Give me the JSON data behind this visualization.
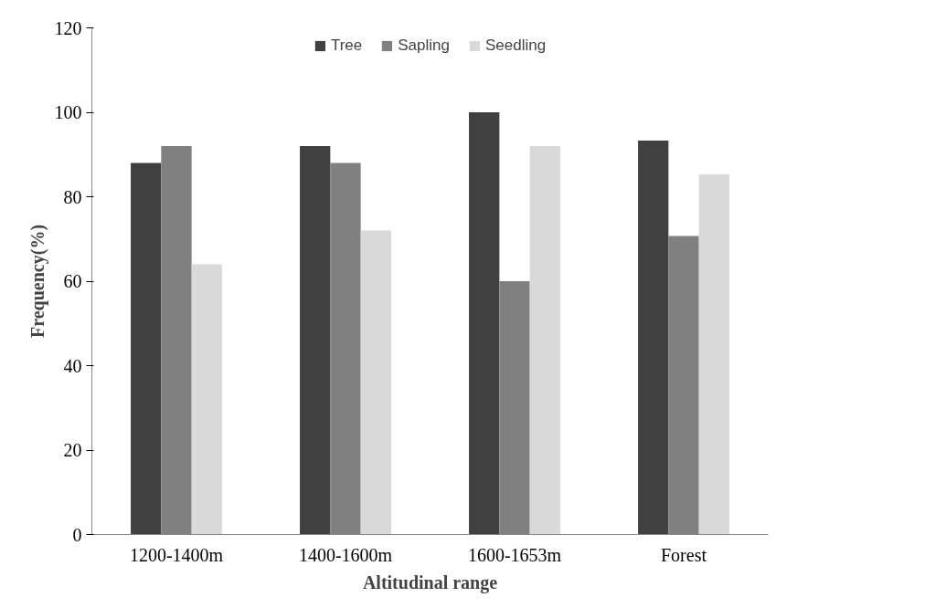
{
  "chart_data": {
    "type": "bar",
    "xlabel": "Altitudinal range",
    "ylabel": "Frequency(%)",
    "categories": [
      "1200-1400m",
      "1400-1600m",
      "1600-1653m",
      "Forest"
    ],
    "series": [
      {
        "name": "Tree",
        "color": "#404040",
        "values": [
          88,
          92,
          100,
          93.3
        ]
      },
      {
        "name": "Sapling",
        "color": "#808080",
        "values": [
          92,
          88,
          60,
          70.7
        ]
      },
      {
        "name": "Seedling",
        "color": "#d9d9d9",
        "values": [
          64,
          72,
          92,
          85.3
        ]
      }
    ],
    "ylim": [
      0,
      120
    ],
    "yticks": [
      0,
      20,
      40,
      60,
      80,
      100,
      120
    ],
    "grid": false,
    "legend": "top"
  }
}
